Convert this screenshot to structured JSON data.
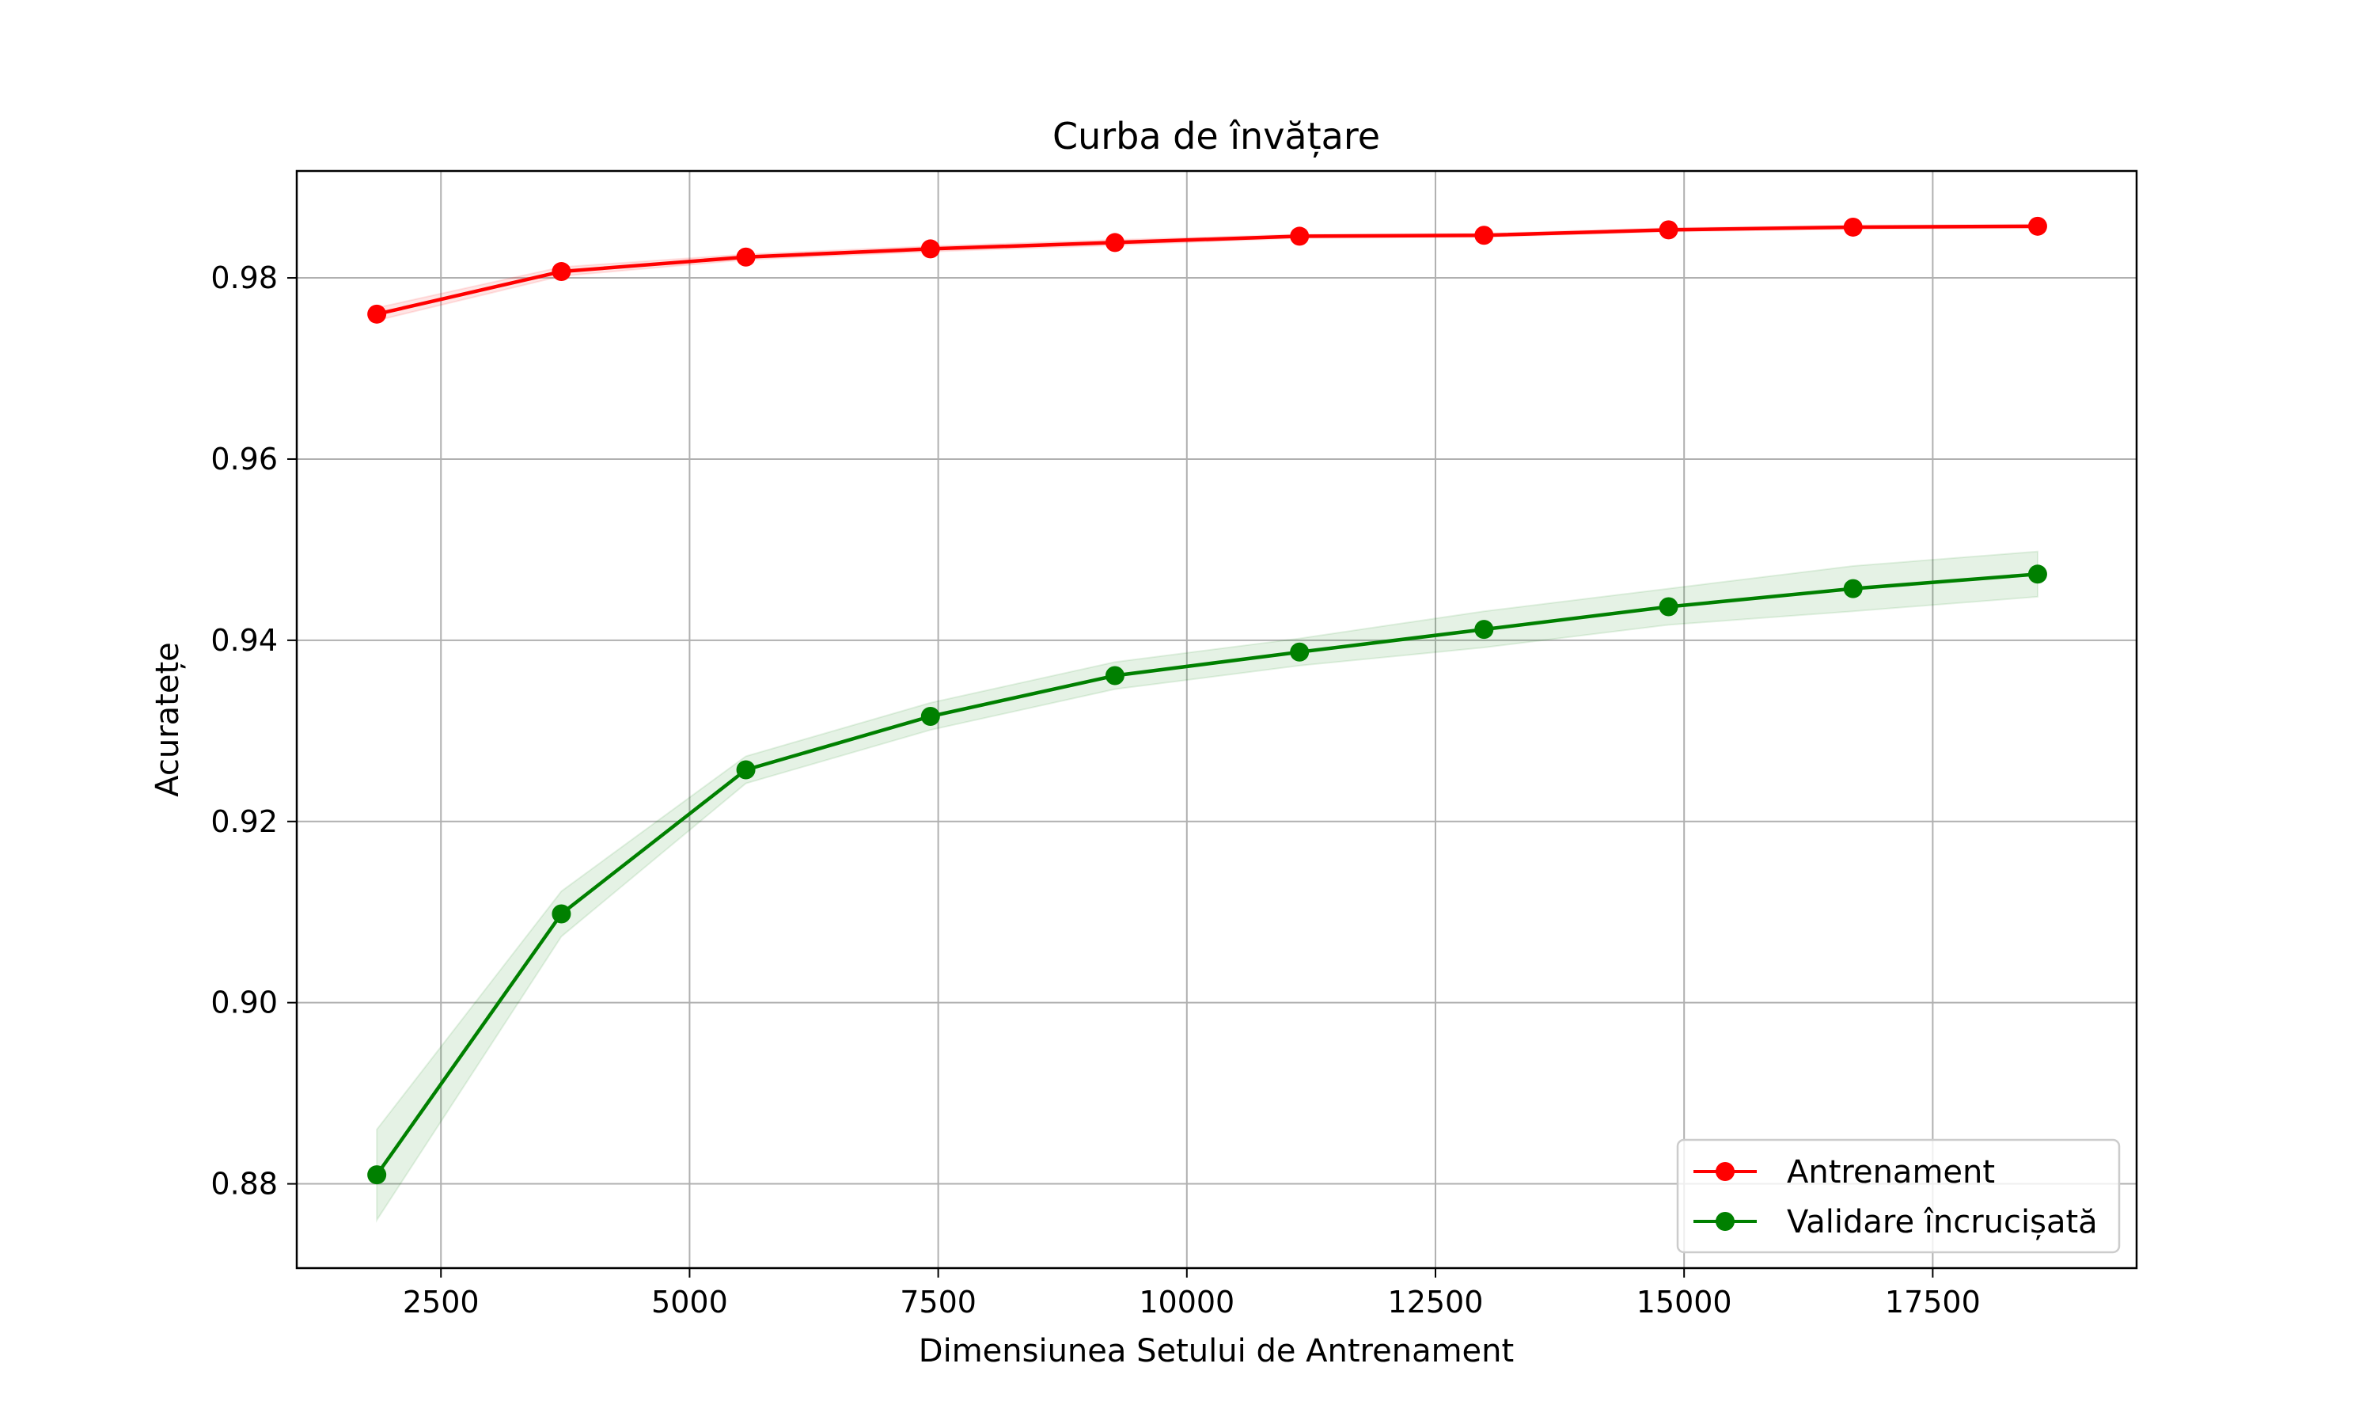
{
  "chart_data": {
    "type": "line",
    "title": "Curba de învățare",
    "xlabel": "Dimensiunea Setului de Antrenament",
    "ylabel": "Acuratețe",
    "xlim": [
      1050,
      19550
    ],
    "ylim": [
      0.8707,
      0.9918
    ],
    "x": [
      1855,
      3711,
      5566,
      7422,
      9277,
      11133,
      12988,
      14844,
      16699,
      18555
    ],
    "xticks": [
      2500,
      5000,
      7500,
      10000,
      12500,
      15000,
      17500
    ],
    "xtick_labels": [
      "2500",
      "5000",
      "7500",
      "10000",
      "12500",
      "15000",
      "17500"
    ],
    "yticks": [
      0.88,
      0.9,
      0.92,
      0.94,
      0.96,
      0.98
    ],
    "ytick_labels": [
      "0.88",
      "0.90",
      "0.92",
      "0.94",
      "0.96",
      "0.98"
    ],
    "grid": true,
    "legend_position": "lower-right",
    "series": [
      {
        "name": "Antrenament",
        "color": "#ff0000",
        "values": [
          0.976,
          0.9807,
          0.9823,
          0.9832,
          0.9839,
          0.9846,
          0.9847,
          0.9853,
          0.9856,
          0.9857
        ],
        "std": [
          0.0007,
          0.0005,
          0.0003,
          0.0003,
          0.0003,
          0.0002,
          0.0002,
          0.0002,
          0.0002,
          0.0002
        ]
      },
      {
        "name": "Validare încrucișată",
        "color": "#008000",
        "values": [
          0.881,
          0.9098,
          0.9257,
          0.9316,
          0.9361,
          0.9387,
          0.9412,
          0.9437,
          0.9457,
          0.9473
        ],
        "std": [
          0.005,
          0.0025,
          0.0015,
          0.0015,
          0.0015,
          0.0015,
          0.002,
          0.002,
          0.0025,
          0.0025
        ]
      }
    ]
  }
}
